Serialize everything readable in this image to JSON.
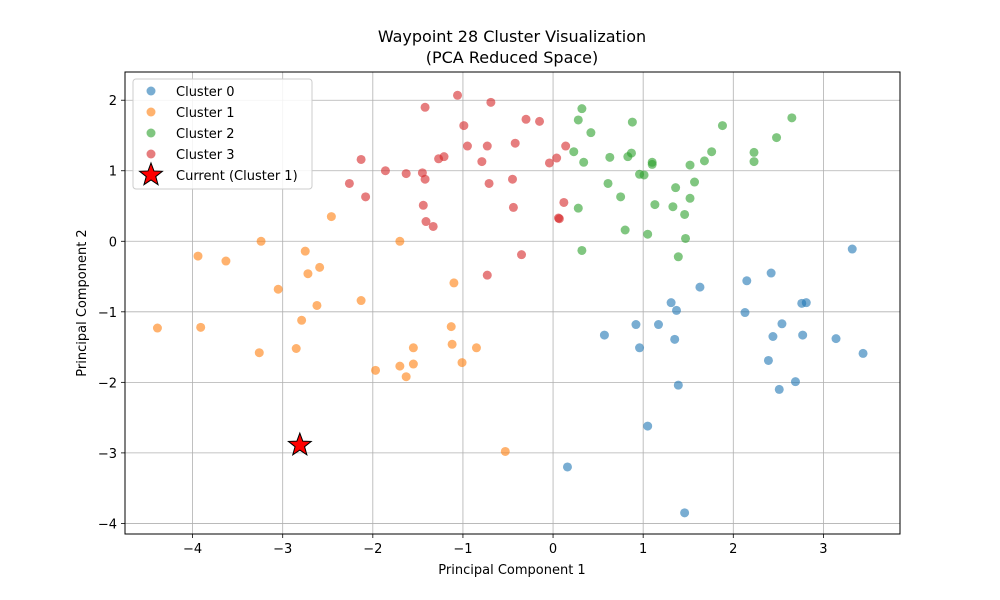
{
  "chart_data": {
    "type": "scatter",
    "title": "Waypoint 28 Cluster Visualization",
    "subtitle": "(PCA Reduced Space)",
    "xlabel": "Principal Component 1",
    "ylabel": "Principal Component 2",
    "xlim": [
      -4.75,
      3.85
    ],
    "ylim": [
      -4.15,
      2.4
    ],
    "xticks": [
      -4,
      -3,
      -2,
      -1,
      0,
      1,
      2,
      3
    ],
    "yticks": [
      2,
      1,
      0,
      -1,
      -2,
      -3,
      -4
    ],
    "xtick_labels": [
      "−4",
      "−3",
      "−2",
      "−1",
      "0",
      "1",
      "2",
      "3"
    ],
    "ytick_labels": [
      "2",
      "1",
      "0",
      "−1",
      "−2",
      "−3",
      "−4"
    ],
    "grid": true,
    "legend_position": "top-left",
    "series": [
      {
        "name": "Cluster 0",
        "color": "#1f77b4",
        "points": [
          [
            3.32,
            -0.11
          ],
          [
            2.42,
            -0.45
          ],
          [
            2.15,
            -0.56
          ],
          [
            1.63,
            -0.65
          ],
          [
            2.76,
            -0.88
          ],
          [
            2.81,
            -0.87
          ],
          [
            1.31,
            -0.87
          ],
          [
            2.13,
            -1.01
          ],
          [
            1.37,
            -0.98
          ],
          [
            0.57,
            -1.33
          ],
          [
            0.92,
            -1.18
          ],
          [
            1.17,
            -1.18
          ],
          [
            2.54,
            -1.17
          ],
          [
            2.44,
            -1.35
          ],
          [
            2.77,
            -1.33
          ],
          [
            3.14,
            -1.38
          ],
          [
            1.35,
            -1.39
          ],
          [
            0.96,
            -1.51
          ],
          [
            3.44,
            -1.59
          ],
          [
            2.39,
            -1.69
          ],
          [
            2.69,
            -1.99
          ],
          [
            1.39,
            -2.04
          ],
          [
            2.51,
            -2.1
          ],
          [
            1.05,
            -2.62
          ],
          [
            0.16,
            -3.2
          ],
          [
            1.46,
            -3.85
          ]
        ]
      },
      {
        "name": "Cluster 1",
        "color": "#ff7f0e",
        "points": [
          [
            -2.46,
            0.35
          ],
          [
            -3.24,
            0.0
          ],
          [
            -1.7,
            0.0
          ],
          [
            -2.75,
            -0.14
          ],
          [
            -3.94,
            -0.21
          ],
          [
            -3.63,
            -0.28
          ],
          [
            -2.59,
            -0.37
          ],
          [
            -2.72,
            -0.46
          ],
          [
            -1.1,
            -0.59
          ],
          [
            -3.05,
            -0.68
          ],
          [
            -2.13,
            -0.84
          ],
          [
            -2.62,
            -0.91
          ],
          [
            -2.79,
            -1.12
          ],
          [
            -4.39,
            -1.23
          ],
          [
            -3.91,
            -1.22
          ],
          [
            -1.13,
            -1.21
          ],
          [
            -1.12,
            -1.46
          ],
          [
            -0.85,
            -1.51
          ],
          [
            -1.55,
            -1.51
          ],
          [
            -2.85,
            -1.52
          ],
          [
            -3.26,
            -1.58
          ],
          [
            -1.01,
            -1.72
          ],
          [
            -1.55,
            -1.74
          ],
          [
            -1.7,
            -1.77
          ],
          [
            -1.97,
            -1.83
          ],
          [
            -1.63,
            -1.92
          ],
          [
            -0.53,
            -2.98
          ]
        ]
      },
      {
        "name": "Cluster 2",
        "color": "#2ca02c",
        "points": [
          [
            0.32,
            1.88
          ],
          [
            0.28,
            1.72
          ],
          [
            0.42,
            1.54
          ],
          [
            2.65,
            1.75
          ],
          [
            0.88,
            1.69
          ],
          [
            1.88,
            1.64
          ],
          [
            2.48,
            1.47
          ],
          [
            0.23,
            1.27
          ],
          [
            0.87,
            1.25
          ],
          [
            0.83,
            1.2
          ],
          [
            0.63,
            1.19
          ],
          [
            0.34,
            1.12
          ],
          [
            1.1,
            1.12
          ],
          [
            1.1,
            1.09
          ],
          [
            1.52,
            1.08
          ],
          [
            1.68,
            1.14
          ],
          [
            1.76,
            1.27
          ],
          [
            2.23,
            1.26
          ],
          [
            2.23,
            1.13
          ],
          [
            0.96,
            0.95
          ],
          [
            1.01,
            0.94
          ],
          [
            0.61,
            0.82
          ],
          [
            1.36,
            0.76
          ],
          [
            1.57,
            0.84
          ],
          [
            0.75,
            0.63
          ],
          [
            1.52,
            0.61
          ],
          [
            1.13,
            0.52
          ],
          [
            1.33,
            0.49
          ],
          [
            0.28,
            0.47
          ],
          [
            1.46,
            0.38
          ],
          [
            0.8,
            0.16
          ],
          [
            1.05,
            0.1
          ],
          [
            1.47,
            0.04
          ],
          [
            0.32,
            -0.13
          ],
          [
            1.39,
            -0.22
          ]
        ]
      },
      {
        "name": "Cluster 3",
        "color": "#d62728",
        "points": [
          [
            -1.06,
            2.07
          ],
          [
            -0.69,
            1.97
          ],
          [
            -1.42,
            1.9
          ],
          [
            -0.99,
            1.64
          ],
          [
            -0.3,
            1.73
          ],
          [
            -0.15,
            1.7
          ],
          [
            -0.42,
            1.39
          ],
          [
            -0.73,
            1.35
          ],
          [
            -0.95,
            1.35
          ],
          [
            0.14,
            1.35
          ],
          [
            -1.21,
            1.2
          ],
          [
            -1.27,
            1.17
          ],
          [
            -2.13,
            1.16
          ],
          [
            -0.79,
            1.13
          ],
          [
            0.04,
            1.18
          ],
          [
            -0.04,
            1.11
          ],
          [
            -1.86,
            1.0
          ],
          [
            -1.45,
            0.97
          ],
          [
            -1.63,
            0.96
          ],
          [
            -1.42,
            0.88
          ],
          [
            -0.45,
            0.88
          ],
          [
            -2.26,
            0.82
          ],
          [
            -0.71,
            0.82
          ],
          [
            -2.08,
            0.63
          ],
          [
            0.12,
            0.55
          ],
          [
            -1.44,
            0.51
          ],
          [
            -0.44,
            0.48
          ],
          [
            0.06,
            0.33
          ],
          [
            0.07,
            0.32
          ],
          [
            -1.41,
            0.28
          ],
          [
            -1.33,
            0.21
          ],
          [
            -0.35,
            -0.19
          ],
          [
            -0.73,
            -0.48
          ]
        ]
      },
      {
        "name": "Current (Cluster 1)",
        "color": "#ff0000",
        "marker": "star",
        "points": [
          [
            -2.81,
            -2.89
          ]
        ]
      }
    ]
  }
}
